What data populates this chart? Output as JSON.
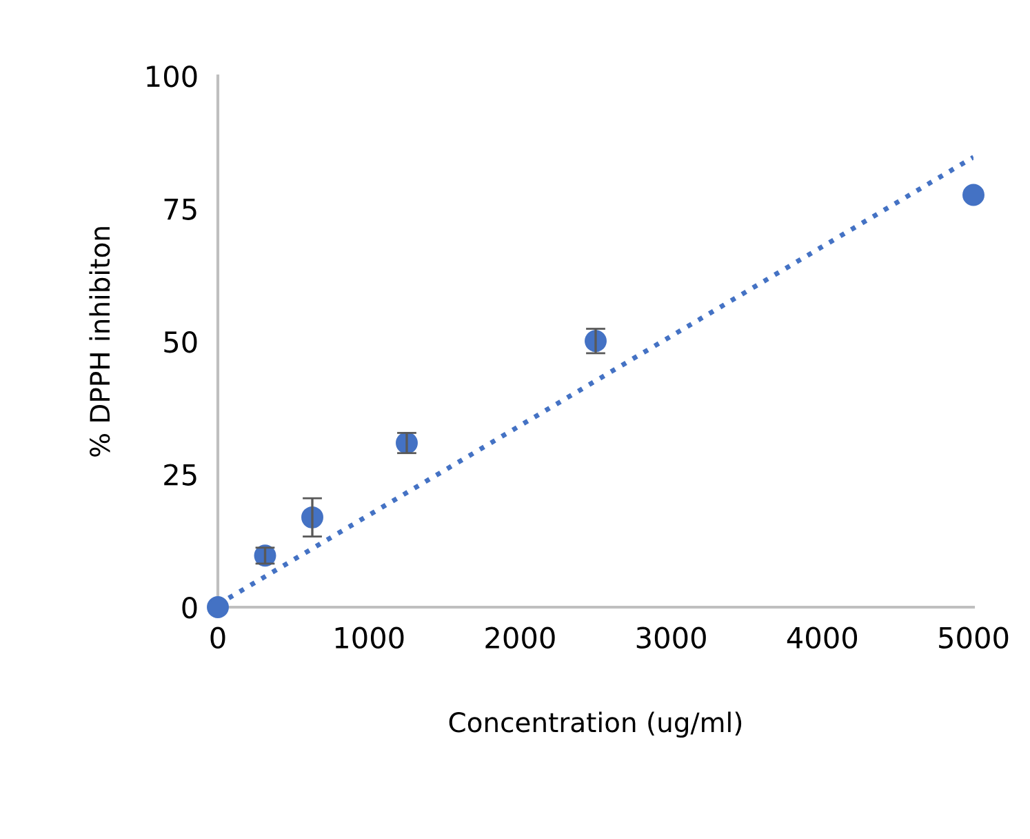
{
  "chart_data": {
    "type": "scatter",
    "xlabel": "Concentration (ug/ml)",
    "ylabel": "% DPPH inhibiton",
    "xlim": [
      0,
      5000
    ],
    "xticks": [
      0,
      1000,
      2000,
      3000,
      4000,
      5000
    ],
    "ylim": [
      0,
      100
    ],
    "yticks": [
      0,
      25,
      50,
      75,
      100
    ],
    "grid": false,
    "legend": false,
    "marker": "circle",
    "series": [
      {
        "color": "#4472c4",
        "x": [
          0,
          312.5,
          625,
          1250,
          2500,
          5000
        ],
        "values": [
          0,
          9.7,
          16.9,
          30.9,
          50.1,
          77.6
        ],
        "errors": [
          null,
          1.5,
          3.6,
          1.9,
          2.3,
          null
        ]
      },
      {
        "type": "line",
        "color": "#4472c4",
        "line_style": "dotted",
        "marker": "none",
        "x": [
          0,
          5000
        ],
        "values": [
          0.5,
          84.7
        ]
      }
    ]
  }
}
